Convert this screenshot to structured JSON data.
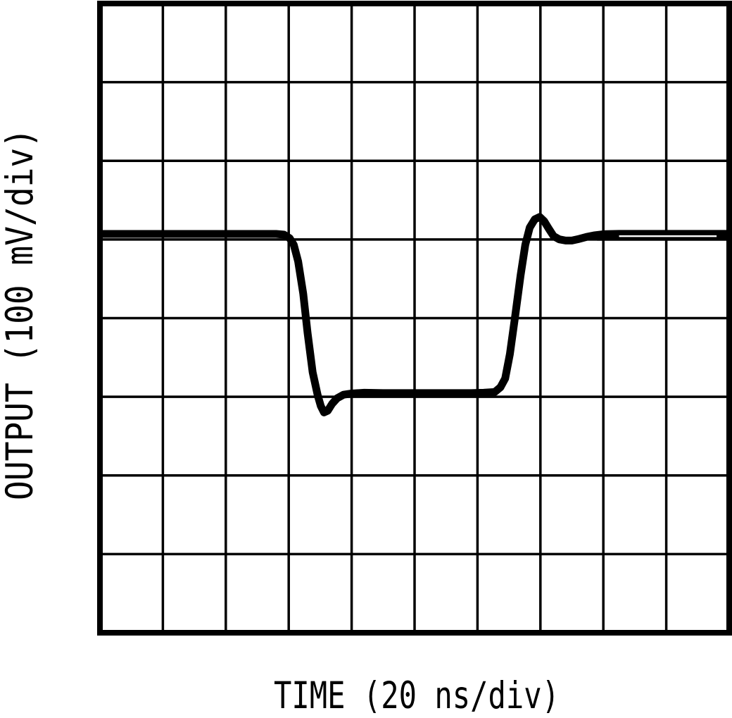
{
  "figure": {
    "background": "#ffffff",
    "xlabel": "TIME (20 ns/div)",
    "ylabel": "OUTPUT (100 mV/div)"
  },
  "chart_data": {
    "type": "line",
    "xlabel": "TIME (20 ns/div)",
    "ylabel": "OUTPUT (100 mV/div)",
    "x_unit": "ns",
    "y_unit": "mV",
    "x_per_div": 20,
    "y_per_div": 100,
    "x_divisions": 10,
    "y_divisions": 8,
    "x_range": [
      0,
      200
    ],
    "baseline_mv": 0,
    "low_level_mv": -202,
    "overshoot_peak_mv": 22,
    "undershoot_min_mv": -226,
    "baseline_divisions_from_top": 3,
    "grid": true,
    "legend": false,
    "colors": {
      "trace": "#000000",
      "grid": "#000000",
      "background": "#ffffff"
    },
    "series": [
      {
        "name": "output-trace",
        "points": [
          [
            0,
            0.9
          ],
          [
            30,
            0.9
          ],
          [
            48,
            0.9
          ],
          [
            56,
            0.9
          ],
          [
            58.5,
            0
          ],
          [
            60.3,
            -4.5
          ],
          [
            61.6,
            -13
          ],
          [
            63,
            -34
          ],
          [
            64.6,
            -75
          ],
          [
            66,
            -125
          ],
          [
            67.6,
            -175
          ],
          [
            69.2,
            -204
          ],
          [
            70.2,
            -218
          ],
          [
            71.2,
            -226
          ],
          [
            72.4,
            -224
          ],
          [
            73.8,
            -215
          ],
          [
            75.4,
            -208
          ],
          [
            77.4,
            -203.5
          ],
          [
            80,
            -202
          ],
          [
            84,
            -201
          ],
          [
            90,
            -201.5
          ],
          [
            100,
            -201.5
          ],
          [
            110,
            -201.5
          ],
          [
            118,
            -201.5
          ],
          [
            122,
            -201
          ],
          [
            125.5,
            -200
          ],
          [
            127.3,
            -194
          ],
          [
            128.8,
            -183
          ],
          [
            130.3,
            -152
          ],
          [
            132,
            -103
          ],
          [
            133.7,
            -52
          ],
          [
            135.2,
            -13
          ],
          [
            136.6,
            9
          ],
          [
            138.2,
            19.5
          ],
          [
            139.8,
            22.5
          ],
          [
            141.2,
            17
          ],
          [
            142.6,
            8
          ],
          [
            144.2,
            -2
          ],
          [
            146,
            -6
          ],
          [
            148,
            -7.5
          ],
          [
            150,
            -7.5
          ],
          [
            152.3,
            -5.5
          ],
          [
            154.6,
            -3
          ],
          [
            157,
            -1
          ],
          [
            160,
            0.5
          ],
          [
            165,
            1
          ],
          [
            175,
            1
          ],
          [
            185,
            1
          ],
          [
            200,
            1
          ]
        ]
      }
    ],
    "second_sweep": {
      "t_start": 158,
      "t_end": 200,
      "v_mv": -5.5
    },
    "sweep_separation_seam": {
      "t_start": 165,
      "t_end": 196,
      "v_mv": -2
    }
  }
}
